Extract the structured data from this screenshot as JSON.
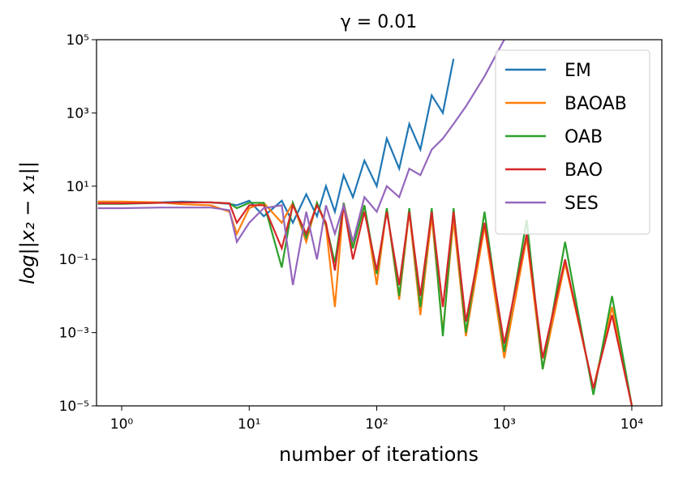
{
  "chart_data": {
    "type": "line",
    "title": "γ = 0.01",
    "x_label": "number of iterations",
    "y_label": "log||x₂ − x₁||",
    "x_scale": "log",
    "y_scale": "log",
    "legend": "upper right",
    "xlim": [
      0.635,
      17200
    ],
    "ylim": [
      1e-05,
      100000
    ],
    "xticks": [
      {
        "value": 1,
        "label": "10⁰"
      },
      {
        "value": 10,
        "label": "10¹"
      },
      {
        "value": 100,
        "label": "10²"
      },
      {
        "value": 1000,
        "label": "10³"
      },
      {
        "value": 10000,
        "label": "10⁴"
      }
    ],
    "yticks": [
      {
        "value": 1e-05,
        "label": "10⁻⁵"
      },
      {
        "value": 0.001,
        "label": "10⁻³"
      },
      {
        "value": 0.1,
        "label": "10⁻¹"
      },
      {
        "value": 10,
        "label": "10¹"
      },
      {
        "value": 1000,
        "label": "10³"
      },
      {
        "value": 100000,
        "label": "10⁵"
      }
    ],
    "x": [
      0.65,
      1,
      2,
      3,
      5,
      7,
      8,
      10,
      13,
      18,
      22,
      28,
      34,
      40,
      47,
      55,
      65,
      80,
      100,
      120,
      150,
      180,
      220,
      270,
      330,
      400,
      500,
      700,
      1000,
      1500,
      2000,
      3000,
      5000,
      7000,
      10000
    ],
    "series": [
      {
        "name": "EM",
        "color": "#1f77b4",
        "values": [
          3.5,
          3.5,
          3.6,
          3.8,
          3.6,
          3.3,
          3.0,
          4,
          1.5,
          4,
          1,
          6,
          1.5,
          10,
          2,
          20,
          5,
          50,
          10,
          200,
          30,
          500,
          100,
          3000,
          1000,
          30000,
          null,
          null,
          null,
          null,
          null,
          null,
          null,
          null,
          null
        ]
      },
      {
        "name": "BAOAB",
        "color": "#ff7f0e",
        "values": [
          3.8,
          3.8,
          3.6,
          3.2,
          3.0,
          2.0,
          0.5,
          2.5,
          3.5,
          1,
          3.5,
          0.3,
          3.5,
          0.8,
          0.005,
          3.5,
          0.3,
          3,
          0.02,
          2.5,
          0.008,
          2,
          0.003,
          1.5,
          0.001,
          1.2,
          0.0008,
          0.8,
          0.0002,
          0.4,
          0.0001,
          0.08,
          3e-05,
          0.005,
          1e-05
        ]
      },
      {
        "name": "OAB",
        "color": "#2ca02c",
        "values": [
          3.3,
          3.3,
          3.5,
          3.6,
          3.6,
          3.4,
          2.5,
          3.5,
          3.5,
          0.06,
          3.5,
          0.4,
          3.5,
          0.9,
          0.08,
          3.5,
          0.2,
          3,
          0.04,
          2.5,
          0.01,
          2.5,
          0.005,
          2.5,
          0.0008,
          2.5,
          0.001,
          2,
          0.0003,
          1.2,
          0.0001,
          0.3,
          2e-05,
          0.01,
          1e-05
        ]
      },
      {
        "name": "BAO",
        "color": "#d62728",
        "values": [
          3.4,
          3.4,
          3.5,
          3.6,
          3.6,
          3.4,
          1.0,
          3.0,
          3.0,
          0.2,
          3.0,
          0.5,
          3.0,
          1.0,
          0.05,
          3.0,
          0.1,
          2.0,
          0.05,
          2.0,
          0.02,
          2.0,
          0.01,
          2.0,
          0.005,
          2.0,
          0.002,
          1.0,
          0.0005,
          0.5,
          0.0002,
          0.1,
          3e-05,
          0.003,
          1e-05
        ]
      },
      {
        "name": "SES",
        "color": "#9467bd",
        "values": [
          2.5,
          2.5,
          2.6,
          2.6,
          2.6,
          2.2,
          0.3,
          1.0,
          2.5,
          3.0,
          0.02,
          2.0,
          0.1,
          3.0,
          0.5,
          3.0,
          0.3,
          5.0,
          2.0,
          10,
          5,
          30,
          20,
          100,
          200,
          500,
          1500,
          10000,
          100000,
          null,
          null,
          null,
          null,
          null,
          null
        ]
      }
    ]
  }
}
